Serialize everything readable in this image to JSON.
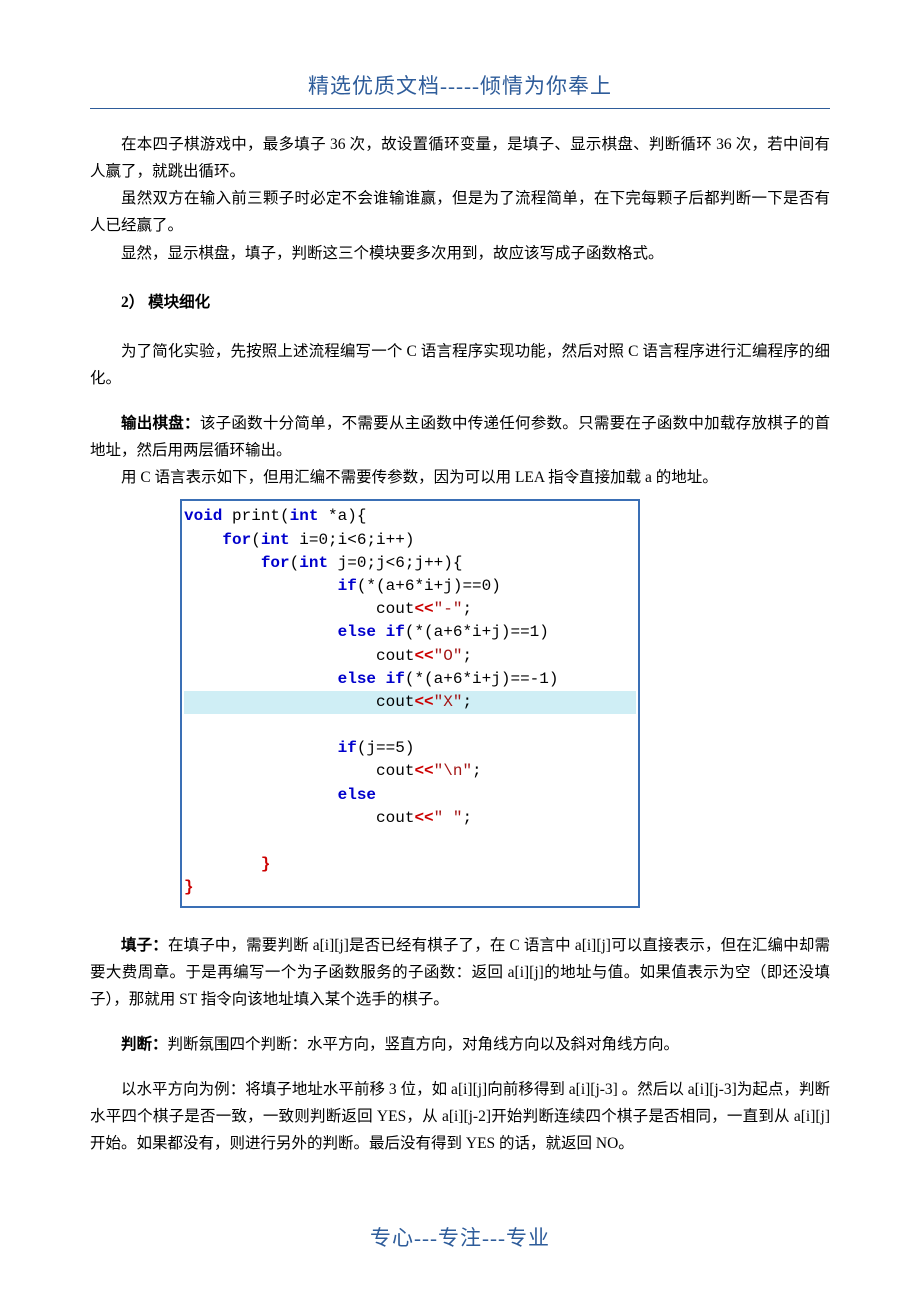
{
  "header": {
    "text": "精选优质文档-----倾情为你奉上"
  },
  "footer": {
    "text": "专心---专注---专业"
  },
  "body": {
    "p1": "在本四子棋游戏中，最多填子 36 次，故设置循环变量，是填子、显示棋盘、判断循环 36 次，若中间有人赢了，就跳出循环。",
    "p2": "虽然双方在输入前三颗子时必定不会谁输谁赢，但是为了流程简单，在下完每颗子后都判断一下是否有人已经赢了。",
    "p3": "显然，显示棋盘，填子，判断这三个模块要多次用到，故应该写成子函数格式。",
    "sec2_label": "2）  模块细化",
    "p4": "为了简化实验，先按照上述流程编写一个 C 语言程序实现功能，然后对照 C 语言程序进行汇编程序的细化。",
    "p5a_bold": "输出棋盘：",
    "p5a_rest": "该子函数十分简单，不需要从主函数中传递任何参数。只需要在子函数中加载存放棋子的首地址，然后用两层循环输出。",
    "p5b": "用 C 语言表示如下，但用汇编不需要传参数，因为可以用 LEA 指令直接加载 a 的地址。",
    "p6_bold": "填子：",
    "p6_rest": "在填子中，需要判断 a[i][j]是否已经有棋子了，在 C 语言中 a[i][j]可以直接表示，但在汇编中却需要大费周章。于是再编写一个为子函数服务的子函数：返回 a[i][j]的地址与值。如果值表示为空（即还没填子），那就用 ST 指令向该地址填入某个选手的棋子。",
    "p7_bold": "判断：",
    "p7_rest": "判断氛围四个判断：水平方向，竖直方向，对角线方向以及斜对角线方向。",
    "p8": "以水平方向为例：将填子地址水平前移 3 位，如 a[i][j]向前移得到 a[i][j-3] 。然后以 a[i][j-3]为起点，判断水平四个棋子是否一致，一致则判断返回 YES，从 a[i][j-2]开始判断连续四个棋子是否相同，一直到从 a[i][j]开始。如果都没有，则进行另外的判断。最后没有得到 YES 的话，就返回 NO。"
  },
  "code": {
    "font_family": "Courier New",
    "border_color": "#3a6fb5",
    "highlight_bg": "#cfeef5",
    "keyword_color": "#0000cc",
    "operator_color": "#cc0000",
    "string_color": "#a31515",
    "l01_kw1": "void",
    "l01_id": " print(",
    "l01_kw2": "int",
    "l01_rest": " *a){",
    "l02_pad": "    ",
    "l02_kw": "for",
    "l02_rest1": "(",
    "l02_kw2": "int",
    "l02_rest2": " i=0;i<6;i++)",
    "l03_pad": "        ",
    "l03_kw": "for",
    "l03_rest1": "(",
    "l03_kw2": "int",
    "l03_rest2": " j=0;j<6;j++){",
    "l04_pad": "                ",
    "l04_kw": "if",
    "l04_rest": "(*(a+6*i+j)==0)",
    "l05_pad": "                    ",
    "l05_id": "cout",
    "l05_op": "<<",
    "l05_str": "\"-\"",
    "l05_semi": ";",
    "l06_pad": "                ",
    "l06_kw": "else if",
    "l06_rest": "(*(a+6*i+j)==1)",
    "l07_pad": "                    ",
    "l07_id": "cout",
    "l07_op": "<<",
    "l07_str": "\"O\"",
    "l07_semi": ";",
    "l08_pad": "                ",
    "l08_kw": "else if",
    "l08_rest": "(*(a+6*i+j)==-1)",
    "l09_pad": "                    ",
    "l09_id": "cout",
    "l09_op": "<<",
    "l09_str": "\"X\"",
    "l09_semi": ";",
    "l10_blank": " ",
    "l11_pad": "                ",
    "l11_kw": "if",
    "l11_rest": "(j==5)",
    "l12_pad": "                    ",
    "l12_id": "cout",
    "l12_op": "<<",
    "l12_str": "\"\\n\"",
    "l12_semi": ";",
    "l13_pad": "                ",
    "l13_kw": "else",
    "l14_pad": "                    ",
    "l14_id": "cout",
    "l14_op": "<<",
    "l14_str": "\" \"",
    "l14_semi": ";",
    "l15_blank": " ",
    "l16_pad": "        ",
    "l16_brace": "}",
    "l17_brace": "}"
  }
}
